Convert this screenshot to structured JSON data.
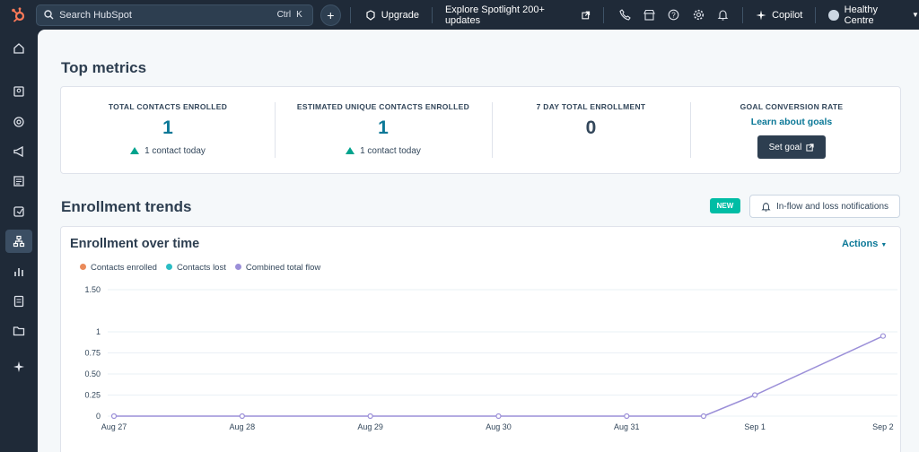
{
  "topbar": {
    "search_placeholder": "Search HubSpot",
    "shortcut_ctrl": "Ctrl",
    "shortcut_key": "K",
    "upgrade": "Upgrade",
    "spotlight": "Explore Spotlight 200+ updates",
    "copilot": "Copilot",
    "account": "Healthy Centre"
  },
  "top_metrics": {
    "title": "Top metrics",
    "items": [
      {
        "label": "TOTAL CONTACTS ENROLLED",
        "value": "1",
        "sub": "1 contact today"
      },
      {
        "label": "ESTIMATED UNIQUE CONTACTS ENROLLED",
        "value": "1",
        "sub": "1 contact today"
      },
      {
        "label": "7 DAY TOTAL ENROLLMENT",
        "value": "0"
      },
      {
        "label": "GOAL CONVERSION RATE",
        "link": "Learn about goals",
        "button": "Set goal"
      }
    ]
  },
  "enrollment_trends": {
    "title": "Enrollment trends",
    "badge": "NEW",
    "notif_button": "In-flow and loss notifications"
  },
  "chart_card": {
    "title": "Enrollment over time",
    "actions": "Actions",
    "legend": [
      {
        "name": "Contacts enrolled",
        "color": "#ea8a5a"
      },
      {
        "name": "Contacts lost",
        "color": "#2bbdc4"
      },
      {
        "name": "Combined total flow",
        "color": "#9b8fd8"
      }
    ]
  },
  "chart_data": {
    "type": "line",
    "categories": [
      "Aug 27",
      "Aug 28",
      "Aug 29",
      "Aug 30",
      "Aug 31",
      "Sep 1",
      "Sep 2"
    ],
    "ylim": [
      0,
      1.5
    ],
    "yticks": [
      "0",
      "0.25",
      "0.50",
      "0.75",
      "1",
      "1.50"
    ],
    "series": [
      {
        "name": "Combined total flow",
        "color": "#9b8fd8",
        "points": [
          [
            0,
            0
          ],
          [
            1,
            0
          ],
          [
            2,
            0
          ],
          [
            3,
            0
          ],
          [
            4,
            0
          ],
          [
            4.6,
            0
          ],
          [
            5,
            0.25
          ],
          [
            6,
            0.95
          ]
        ]
      }
    ],
    "grid": true,
    "legend_position": "top-left"
  }
}
